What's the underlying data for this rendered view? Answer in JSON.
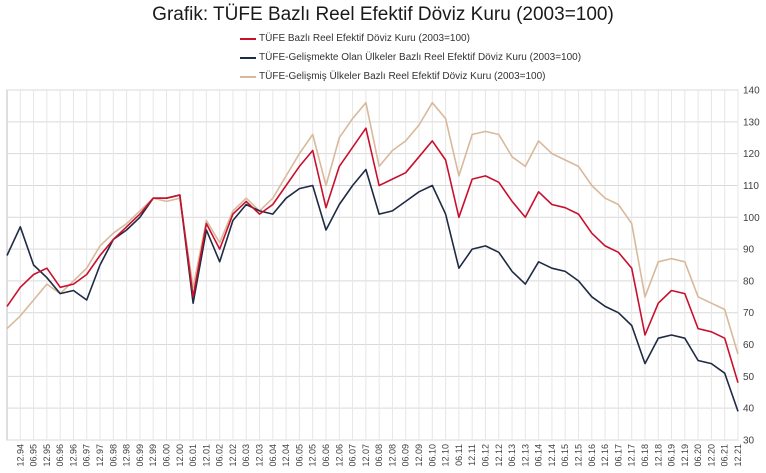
{
  "chart_data": {
    "type": "line",
    "title": "Grafik: TÜFE  Bazlı Reel Efektif Döviz Kuru (2003=100)",
    "xlabel": "",
    "ylabel": "",
    "ylim": [
      30,
      140
    ],
    "y_ticks": [
      30,
      40,
      50,
      60,
      70,
      80,
      90,
      100,
      110,
      120,
      130,
      140
    ],
    "x_tick_labels": [
      "12.94",
      "06.95",
      "12.95",
      "06.96",
      "12.96",
      "06.97",
      "12.97",
      "06.98",
      "12.98",
      "06.99",
      "12.99",
      "06.00",
      "12.00",
      "06.01",
      "12.01",
      "06.02",
      "12.02",
      "06.03",
      "12.03",
      "06.04",
      "12.04",
      "06.05",
      "12.05",
      "06.06",
      "12.06",
      "06.07",
      "12.07",
      "06.08",
      "12.08",
      "06.09",
      "12.09",
      "06.10",
      "12.10",
      "06.11",
      "12.11",
      "06.12",
      "12.12",
      "06.13",
      "12.13",
      "06.14",
      "12.14",
      "06.15",
      "12.15",
      "06.16",
      "12.16",
      "06.17",
      "12.17",
      "06.18",
      "12.18",
      "06.19",
      "12.19",
      "06.20",
      "12.20",
      "06.21",
      "12.21"
    ],
    "grid": true,
    "legend_position": "top-center",
    "x": [
      "06.94",
      "12.94",
      "06.95",
      "12.95",
      "06.96",
      "12.96",
      "06.97",
      "12.97",
      "06.98",
      "12.98",
      "06.99",
      "12.99",
      "06.00",
      "12.00",
      "06.01",
      "12.01",
      "06.02",
      "12.02",
      "06.03",
      "12.03",
      "06.04",
      "12.04",
      "06.05",
      "12.05",
      "06.06",
      "12.06",
      "06.07",
      "12.07",
      "06.08",
      "12.08",
      "06.09",
      "12.09",
      "06.10",
      "12.10",
      "06.11",
      "12.11",
      "06.12",
      "12.12",
      "06.13",
      "12.13",
      "06.14",
      "12.14",
      "06.15",
      "12.15",
      "06.16",
      "12.16",
      "06.17",
      "12.17",
      "06.18",
      "12.18",
      "06.19",
      "12.19",
      "06.20",
      "12.20",
      "06.21",
      "12.21"
    ],
    "series": [
      {
        "name": "TÜFE  Bazlı Reel Efektif Döviz Kuru (2003=100)",
        "color": "#c8102e",
        "values": [
          72,
          78,
          82,
          84,
          78,
          79,
          82,
          88,
          93,
          97,
          101,
          106,
          106,
          107,
          75,
          98,
          90,
          101,
          105,
          101,
          104,
          110,
          116,
          121,
          103,
          116,
          122,
          128,
          110,
          112,
          114,
          119,
          124,
          118,
          100,
          112,
          113,
          111,
          105,
          100,
          108,
          104,
          103,
          101,
          95,
          91,
          89,
          84,
          63,
          73,
          77,
          76,
          65,
          64,
          62,
          48
        ]
      },
      {
        "name": "TÜFE-Gelişmekte Olan Ülkeler Bazlı Reel Efektif Döviz Kuru (2003=100)",
        "color": "#1f2a44",
        "values": [
          88,
          97,
          85,
          81,
          76,
          77,
          74,
          85,
          93,
          96,
          100,
          106,
          106,
          107,
          73,
          96,
          86,
          99,
          104,
          102,
          101,
          106,
          109,
          110,
          96,
          104,
          110,
          115,
          101,
          102,
          105,
          108,
          110,
          101,
          84,
          90,
          91,
          89,
          83,
          79,
          86,
          84,
          83,
          80,
          75,
          72,
          70,
          66,
          54,
          62,
          63,
          62,
          55,
          54,
          51,
          39
        ]
      },
      {
        "name": "TÜFE-Gelişmiş Ülkeler Bazlı Reel Efektif Döviz Kuru (2003=100)",
        "color": "#d9b99b",
        "values": [
          65,
          69,
          74,
          79,
          76,
          80,
          84,
          91,
          95,
          98,
          102,
          106,
          105,
          106,
          78,
          99,
          92,
          102,
          106,
          102,
          106,
          113,
          120,
          126,
          110,
          125,
          131,
          136,
          116,
          121,
          124,
          129,
          136,
          131,
          113,
          126,
          127,
          126,
          119,
          116,
          124,
          120,
          118,
          116,
          110,
          106,
          104,
          98,
          75,
          86,
          87,
          86,
          75,
          73,
          71,
          57
        ]
      }
    ]
  }
}
